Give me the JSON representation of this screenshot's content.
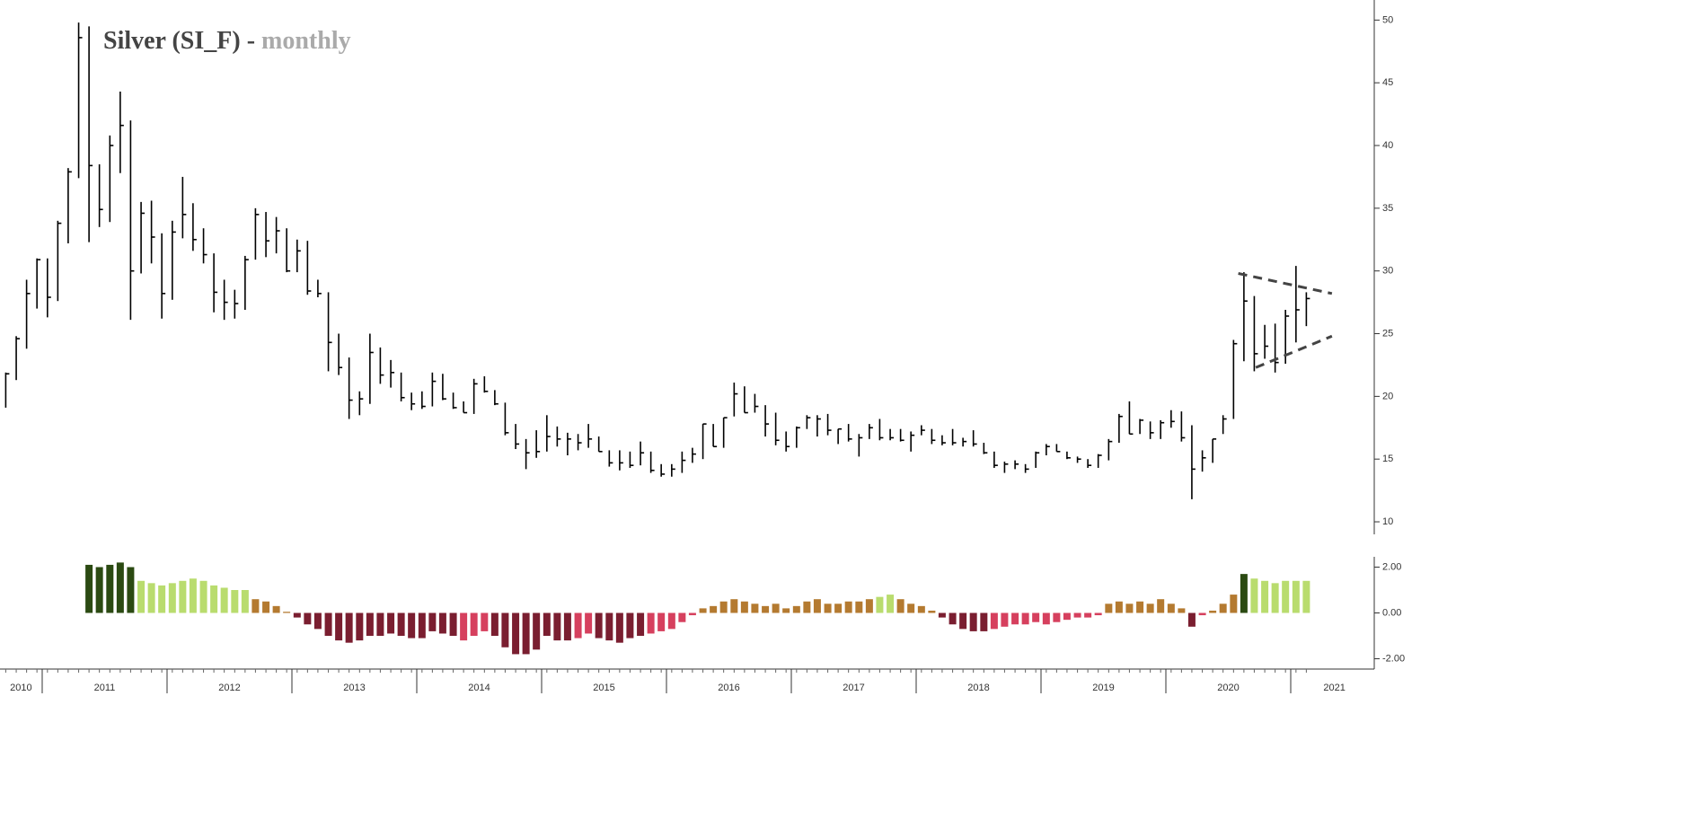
{
  "chart_data": [
    {
      "type": "hlc",
      "title": "Silver (SI_F) -",
      "subtitle": "monthly",
      "color": "#000000",
      "x": [
        2010.708,
        2010.792,
        2010.875,
        2010.958,
        2011.042,
        2011.125,
        2011.208,
        2011.292,
        2011.375,
        2011.458,
        2011.542,
        2011.625,
        2011.708,
        2011.792,
        2011.875,
        2011.958,
        2012.042,
        2012.125,
        2012.208,
        2012.292,
        2012.375,
        2012.458,
        2012.542,
        2012.625,
        2012.708,
        2012.792,
        2012.875,
        2012.958,
        2013.042,
        2013.125,
        2013.208,
        2013.292,
        2013.375,
        2013.458,
        2013.542,
        2013.625,
        2013.708,
        2013.792,
        2013.875,
        2013.958,
        2014.042,
        2014.125,
        2014.208,
        2014.292,
        2014.375,
        2014.458,
        2014.542,
        2014.625,
        2014.708,
        2014.792,
        2014.875,
        2014.958,
        2015.042,
        2015.125,
        2015.208,
        2015.292,
        2015.375,
        2015.458,
        2015.542,
        2015.625,
        2015.708,
        2015.792,
        2015.875,
        2015.958,
        2016.042,
        2016.125,
        2016.208,
        2016.292,
        2016.375,
        2016.458,
        2016.542,
        2016.625,
        2016.708,
        2016.792,
        2016.875,
        2016.958,
        2017.042,
        2017.125,
        2017.208,
        2017.292,
        2017.375,
        2017.458,
        2017.542,
        2017.625,
        2017.708,
        2017.792,
        2017.875,
        2017.958,
        2018.042,
        2018.125,
        2018.208,
        2018.292,
        2018.375,
        2018.458,
        2018.542,
        2018.625,
        2018.708,
        2018.792,
        2018.875,
        2018.958,
        2019.042,
        2019.125,
        2019.208,
        2019.292,
        2019.375,
        2019.458,
        2019.542,
        2019.625,
        2019.708,
        2019.792,
        2019.875,
        2019.958,
        2020.042,
        2020.125,
        2020.208,
        2020.292,
        2020.375,
        2020.458,
        2020.542,
        2020.625,
        2020.708,
        2020.792,
        2020.875,
        2020.958,
        2021.042,
        2021.125
      ],
      "high": [
        21.9,
        24.8,
        29.3,
        31.0,
        31.0,
        34.0,
        38.2,
        49.8,
        49.5,
        38.5,
        40.8,
        44.3,
        42.0,
        35.5,
        35.6,
        33.0,
        34.0,
        37.5,
        35.4,
        33.4,
        31.4,
        29.3,
        28.5,
        31.2,
        35.0,
        34.7,
        34.3,
        33.4,
        32.5,
        32.4,
        29.3,
        28.3,
        25.0,
        23.1,
        20.4,
        25.0,
        23.9,
        22.9,
        21.9,
        20.3,
        20.4,
        21.9,
        21.8,
        20.3,
        19.6,
        21.4,
        21.6,
        20.5,
        19.5,
        17.8,
        16.6,
        17.3,
        18.5,
        17.6,
        17.1,
        17.0,
        17.8,
        16.8,
        15.7,
        15.7,
        15.6,
        16.4,
        15.6,
        14.6,
        14.6,
        15.6,
        15.9,
        17.8,
        17.8,
        18.3,
        21.1,
        20.8,
        20.2,
        19.3,
        18.7,
        17.2,
        17.6,
        18.5,
        18.5,
        18.6,
        17.4,
        17.8,
        17.0,
        17.8,
        18.2,
        17.4,
        17.4,
        17.2,
        17.7,
        17.4,
        16.9,
        17.4,
        16.7,
        17.3,
        16.3,
        15.6,
        14.8,
        14.9,
        14.6,
        15.6,
        16.2,
        16.2,
        15.6,
        15.2,
        15.0,
        15.4,
        16.6,
        18.6,
        19.6,
        18.2,
        18.0,
        18.1,
        18.9,
        18.8,
        17.7,
        15.7,
        16.6,
        18.5,
        24.5,
        29.9,
        28.0,
        25.7,
        25.8,
        26.9,
        30.4,
        28.3
      ],
      "low": [
        19.1,
        21.3,
        23.8,
        27.0,
        26.3,
        27.6,
        32.2,
        37.4,
        32.3,
        33.5,
        33.9,
        37.8,
        26.1,
        29.8,
        30.6,
        26.2,
        27.7,
        32.6,
        31.6,
        30.6,
        26.7,
        26.1,
        26.2,
        26.9,
        30.9,
        31.1,
        31.4,
        29.9,
        29.9,
        28.1,
        27.9,
        22.0,
        21.7,
        18.2,
        18.5,
        19.4,
        21.0,
        20.7,
        19.6,
        18.9,
        19.0,
        19.2,
        19.7,
        19.0,
        18.7,
        18.6,
        20.3,
        19.3,
        16.9,
        15.8,
        14.2,
        15.1,
        15.6,
        16.0,
        15.3,
        15.7,
        15.9,
        15.6,
        14.4,
        14.1,
        14.3,
        14.5,
        13.9,
        13.6,
        13.6,
        13.9,
        14.7,
        15.0,
        16.0,
        15.9,
        18.4,
        18.7,
        18.7,
        16.8,
        16.1,
        15.6,
        15.9,
        17.4,
        16.8,
        16.9,
        16.2,
        16.4,
        15.2,
        16.6,
        16.5,
        16.5,
        16.4,
        15.6,
        16.9,
        16.2,
        16.1,
        16.1,
        16.0,
        16.0,
        15.4,
        14.3,
        13.9,
        14.2,
        13.9,
        14.3,
        15.3,
        15.6,
        15.0,
        14.7,
        14.3,
        14.3,
        14.9,
        16.3,
        17.0,
        17.0,
        16.6,
        16.6,
        17.5,
        16.4,
        11.8,
        14.0,
        14.7,
        17.0,
        18.2,
        22.8,
        22.0,
        23.0,
        21.9,
        22.6,
        24.3,
        25.6
      ],
      "close": [
        21.8,
        24.6,
        28.2,
        30.9,
        27.9,
        33.8,
        37.9,
        48.6,
        38.4,
        34.9,
        40.0,
        41.6,
        30.0,
        34.6,
        32.7,
        28.2,
        33.1,
        34.5,
        32.5,
        31.3,
        28.3,
        27.5,
        27.4,
        30.9,
        34.5,
        32.4,
        33.2,
        30.0,
        31.6,
        28.4,
        28.2,
        24.3,
        22.3,
        19.7,
        19.8,
        23.5,
        21.7,
        21.9,
        19.9,
        19.4,
        19.2,
        21.2,
        19.8,
        19.1,
        18.7,
        21.0,
        20.4,
        19.4,
        17.1,
        16.2,
        15.5,
        15.6,
        16.8,
        16.6,
        16.6,
        16.3,
        16.6,
        15.6,
        14.7,
        14.7,
        14.5,
        15.5,
        14.1,
        13.8,
        14.2,
        14.9,
        15.4,
        17.8,
        16.0,
        18.3,
        20.2,
        18.7,
        19.2,
        17.8,
        16.5,
        16.0,
        17.5,
        18.3,
        18.2,
        17.3,
        17.4,
        16.6,
        16.7,
        17.5,
        16.7,
        16.7,
        16.5,
        16.9,
        17.3,
        16.5,
        16.3,
        16.3,
        16.4,
        16.2,
        15.5,
        14.5,
        14.6,
        14.6,
        14.2,
        15.5,
        16.0,
        15.6,
        15.1,
        15.0,
        14.5,
        15.3,
        16.4,
        18.4,
        17.0,
        18.1,
        17.1,
        17.9,
        18.0,
        16.7,
        14.2,
        15.1,
        16.6,
        18.2,
        24.2,
        27.6,
        23.4,
        24.0,
        22.7,
        26.4,
        26.9,
        27.8
      ],
      "trendlines": [
        {
          "color": "#444444",
          "x": [
            2020.58,
            2021.33
          ],
          "y": [
            29.8,
            28.2
          ]
        },
        {
          "color": "#444444",
          "x": [
            2020.72,
            2021.33
          ],
          "y": [
            22.3,
            24.8
          ]
        }
      ],
      "xlim": [
        2010.662,
        2021.669
      ],
      "ylim": [
        9,
        51.6
      ],
      "yticks": [
        10,
        15,
        20,
        25,
        30,
        35,
        40,
        45,
        50
      ]
    },
    {
      "type": "bar",
      "x": [
        2011.375,
        2011.458,
        2011.542,
        2011.625,
        2011.708,
        2011.792,
        2011.875,
        2011.958,
        2012.042,
        2012.125,
        2012.208,
        2012.292,
        2012.375,
        2012.458,
        2012.542,
        2012.625,
        2012.708,
        2012.792,
        2012.875,
        2012.958,
        2013.042,
        2013.125,
        2013.208,
        2013.292,
        2013.375,
        2013.458,
        2013.542,
        2013.625,
        2013.708,
        2013.792,
        2013.875,
        2013.958,
        2014.042,
        2014.125,
        2014.208,
        2014.292,
        2014.375,
        2014.458,
        2014.542,
        2014.625,
        2014.708,
        2014.792,
        2014.875,
        2014.958,
        2015.042,
        2015.125,
        2015.208,
        2015.292,
        2015.375,
        2015.458,
        2015.542,
        2015.625,
        2015.708,
        2015.792,
        2015.875,
        2015.958,
        2016.042,
        2016.125,
        2016.208,
        2016.292,
        2016.375,
        2016.458,
        2016.542,
        2016.625,
        2016.708,
        2016.792,
        2016.875,
        2016.958,
        2017.042,
        2017.125,
        2017.208,
        2017.292,
        2017.375,
        2017.458,
        2017.542,
        2017.625,
        2017.708,
        2017.792,
        2017.875,
        2017.958,
        2018.042,
        2018.125,
        2018.208,
        2018.292,
        2018.375,
        2018.458,
        2018.542,
        2018.625,
        2018.708,
        2018.792,
        2018.875,
        2018.958,
        2019.042,
        2019.125,
        2019.208,
        2019.292,
        2019.375,
        2019.458,
        2019.542,
        2019.625,
        2019.708,
        2019.792,
        2019.875,
        2019.958,
        2020.042,
        2020.125,
        2020.208,
        2020.292,
        2020.375,
        2020.458,
        2020.542,
        2020.625,
        2020.708,
        2020.792,
        2020.875,
        2020.958,
        2021.042,
        2021.125
      ],
      "values": [
        2.1,
        2.0,
        2.1,
        2.2,
        2.0,
        1.4,
        1.3,
        1.2,
        1.3,
        1.4,
        1.5,
        1.4,
        1.2,
        1.1,
        1.0,
        1.0,
        0.6,
        0.5,
        0.3,
        0.05,
        -0.2,
        -0.5,
        -0.7,
        -1.0,
        -1.2,
        -1.3,
        -1.2,
        -1.0,
        -1.0,
        -0.9,
        -1.0,
        -1.1,
        -1.1,
        -0.8,
        -0.9,
        -1.0,
        -1.2,
        -1.0,
        -0.8,
        -1.0,
        -1.5,
        -1.8,
        -1.8,
        -1.6,
        -1.0,
        -1.2,
        -1.2,
        -1.1,
        -0.9,
        -1.1,
        -1.2,
        -1.3,
        -1.1,
        -1.0,
        -0.9,
        -0.8,
        -0.7,
        -0.4,
        -0.1,
        0.2,
        0.3,
        0.5,
        0.6,
        0.5,
        0.4,
        0.3,
        0.4,
        0.2,
        0.3,
        0.5,
        0.6,
        0.4,
        0.4,
        0.5,
        0.5,
        0.6,
        0.7,
        0.8,
        0.6,
        0.4,
        0.3,
        0.1,
        -0.2,
        -0.5,
        -0.7,
        -0.8,
        -0.8,
        -0.7,
        -0.6,
        -0.5,
        -0.5,
        -0.4,
        -0.5,
        -0.4,
        -0.3,
        -0.2,
        -0.2,
        -0.1,
        0.4,
        0.5,
        0.4,
        0.5,
        0.4,
        0.6,
        0.4,
        0.2,
        -0.6,
        -0.1,
        0.1,
        0.4,
        0.8,
        1.7,
        1.5,
        1.4,
        1.3,
        1.4,
        1.4,
        1.4
      ],
      "colors": [
        "#2b4a12",
        "#2b4a12",
        "#2b4a12",
        "#2b4a12",
        "#2b4a12",
        "#b9dc6e",
        "#b9dc6e",
        "#b9dc6e",
        "#b9dc6e",
        "#b9dc6e",
        "#b9dc6e",
        "#b9dc6e",
        "#b9dc6e",
        "#b9dc6e",
        "#b9dc6e",
        "#b9dc6e",
        "#b47a30",
        "#b47a30",
        "#b47a30",
        "#b47a30",
        "#7a1e30",
        "#7a1e30",
        "#7a1e30",
        "#7a1e30",
        "#7a1e30",
        "#7a1e30",
        "#7a1e30",
        "#7a1e30",
        "#7a1e30",
        "#7a1e30",
        "#7a1e30",
        "#7a1e30",
        "#7a1e30",
        "#7a1e30",
        "#7a1e30",
        "#7a1e30",
        "#d6405e",
        "#d6405e",
        "#d6405e",
        "#7a1e30",
        "#7a1e30",
        "#7a1e30",
        "#7a1e30",
        "#7a1e30",
        "#7a1e30",
        "#7a1e30",
        "#7a1e30",
        "#d6405e",
        "#d6405e",
        "#7a1e30",
        "#7a1e30",
        "#7a1e30",
        "#7a1e30",
        "#7a1e30",
        "#d6405e",
        "#d6405e",
        "#d6405e",
        "#d6405e",
        "#d6405e",
        "#b47a30",
        "#b47a30",
        "#b47a30",
        "#b47a30",
        "#b47a30",
        "#b47a30",
        "#b47a30",
        "#b47a30",
        "#b47a30",
        "#b47a30",
        "#b47a30",
        "#b47a30",
        "#b47a30",
        "#b47a30",
        "#b47a30",
        "#b47a30",
        "#b47a30",
        "#b9dc6e",
        "#b9dc6e",
        "#b47a30",
        "#b47a30",
        "#b47a30",
        "#b47a30",
        "#7a1e30",
        "#7a1e30",
        "#7a1e30",
        "#7a1e30",
        "#7a1e30",
        "#d6405e",
        "#d6405e",
        "#d6405e",
        "#d6405e",
        "#d6405e",
        "#d6405e",
        "#d6405e",
        "#d6405e",
        "#d6405e",
        "#d6405e",
        "#d6405e",
        "#b47a30",
        "#b47a30",
        "#b47a30",
        "#b47a30",
        "#b47a30",
        "#b47a30",
        "#b47a30",
        "#b47a30",
        "#7a1e30",
        "#d6405e",
        "#b47a30",
        "#b47a30",
        "#b47a30",
        "#2b4a12",
        "#b9dc6e",
        "#b9dc6e",
        "#b9dc6e",
        "#b9dc6e",
        "#b9dc6e",
        "#b9dc6e"
      ],
      "xlim": [
        2010.662,
        2021.669
      ],
      "ylim": [
        -2.45,
        2.45
      ],
      "yticks": [
        {
          "value": -2,
          "label": "-2.00"
        },
        {
          "value": 0,
          "label": "0.00"
        },
        {
          "value": 2,
          "label": "2.00"
        }
      ],
      "xticks": [
        {
          "value": 2010.83,
          "label": "2010"
        },
        {
          "value": 2011.5,
          "label": "2011"
        },
        {
          "value": 2012.5,
          "label": "2012"
        },
        {
          "value": 2013.5,
          "label": "2013"
        },
        {
          "value": 2014.5,
          "label": "2014"
        },
        {
          "value": 2015.5,
          "label": "2015"
        },
        {
          "value": 2016.5,
          "label": "2016"
        },
        {
          "value": 2017.5,
          "label": "2017"
        },
        {
          "value": 2018.5,
          "label": "2018"
        },
        {
          "value": 2019.5,
          "label": "2019"
        },
        {
          "value": 2020.5,
          "label": "2020"
        },
        {
          "value": 2021.35,
          "label": "2021"
        }
      ],
      "year_boundaries": [
        2011,
        2012,
        2013,
        2014,
        2015,
        2016,
        2017,
        2018,
        2019,
        2020,
        2021
      ]
    }
  ]
}
